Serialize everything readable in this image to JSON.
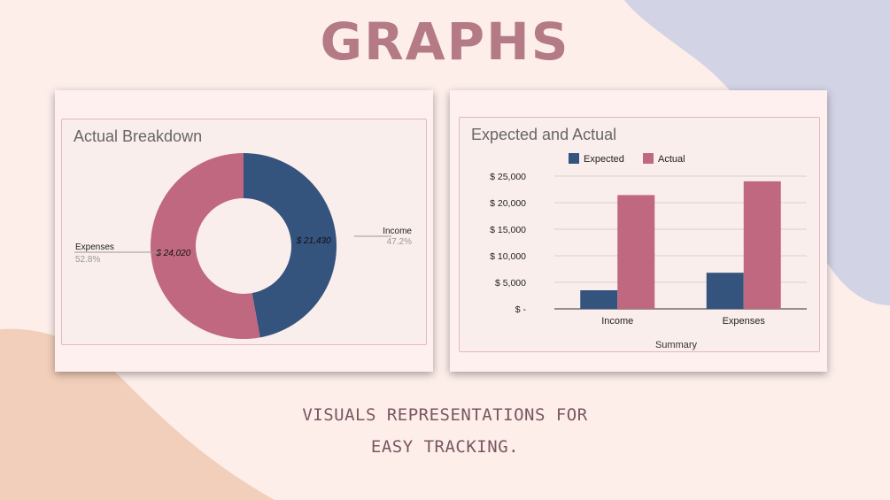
{
  "title": "GRAPHS",
  "subtitle": {
    "line1": "VISUALS REPRESENTATIONS FOR",
    "line2": "EASY TRACKING."
  },
  "colors": {
    "background": "#fdeeea",
    "blob_purple": "#d3d3e6",
    "blob_peach": "#f2cfba",
    "title": "#b47b86",
    "income": "#34537d",
    "expenses": "#c0687f"
  },
  "chart_data": [
    {
      "type": "pie",
      "title": "Actual Breakdown",
      "donut": true,
      "slices": [
        {
          "label": "Income",
          "value": 21430,
          "value_label": "$ 21,430",
          "percent": "47.2%",
          "color": "#34537d"
        },
        {
          "label": "Expenses",
          "value": 24020,
          "value_label": "$ 24,020",
          "percent": "52.8%",
          "color": "#c0687f"
        }
      ]
    },
    {
      "type": "bar",
      "title": "Expected and Actual",
      "categories": [
        "Income",
        "Expenses"
      ],
      "series": [
        {
          "name": "Expected",
          "values": [
            3500,
            6800
          ],
          "color": "#34537d"
        },
        {
          "name": "Actual",
          "values": [
            21430,
            24020
          ],
          "color": "#c0687f"
        }
      ],
      "xlabel": "Summary",
      "ylabel": "",
      "ylim": [
        0,
        25000
      ],
      "yticks": [
        0,
        5000,
        10000,
        15000,
        20000,
        25000
      ],
      "ytick_labels": [
        "$ -",
        "$ 5,000",
        "$ 10,000",
        "$ 15,000",
        "$ 20,000",
        "$ 25,000"
      ],
      "grid": true,
      "legend": "top"
    }
  ]
}
